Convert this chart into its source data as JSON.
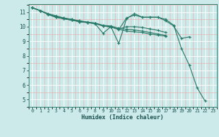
{
  "xlabel": "Humidex (Indice chaleur)",
  "bg_color": "#cceaea",
  "grid_major_color": "#ffffff",
  "grid_minor_color": "#e8b0b0",
  "line_color": "#2a7a6a",
  "series": [
    {
      "x": [
        0,
        1,
        2,
        3,
        4,
        5,
        6,
        7,
        8,
        9,
        10,
        11,
        12,
        13,
        14,
        15,
        16,
        17,
        18,
        19,
        20,
        21,
        22
      ],
      "y": [
        11.3,
        11.1,
        10.9,
        10.75,
        10.6,
        10.5,
        10.4,
        10.3,
        10.2,
        9.55,
        10.0,
        8.85,
        10.55,
        10.9,
        10.65,
        10.65,
        10.65,
        10.5,
        10.1,
        8.5,
        7.35,
        5.8,
        4.9
      ]
    },
    {
      "x": [
        0,
        1,
        2,
        3,
        4,
        5,
        6,
        7,
        8,
        9,
        10,
        11,
        12,
        13,
        14,
        15,
        16,
        17,
        18,
        19,
        20
      ],
      "y": [
        11.3,
        11.1,
        10.85,
        10.65,
        10.55,
        10.45,
        10.35,
        10.3,
        10.25,
        10.05,
        10.0,
        9.8,
        10.6,
        10.8,
        10.65,
        10.65,
        10.65,
        10.4,
        10.05,
        9.2,
        9.3
      ]
    },
    {
      "x": [
        0,
        1,
        2,
        3,
        4,
        5,
        6,
        7,
        8,
        9,
        10,
        11,
        12,
        13,
        14,
        15,
        16,
        17
      ],
      "y": [
        11.3,
        11.1,
        10.85,
        10.65,
        10.55,
        10.45,
        10.35,
        10.28,
        10.22,
        10.05,
        9.98,
        9.85,
        10.0,
        10.0,
        9.95,
        9.85,
        9.75,
        9.6
      ]
    },
    {
      "x": [
        0,
        1,
        2,
        3,
        4,
        5,
        6,
        7,
        8,
        9,
        10,
        11,
        12,
        13,
        14,
        15,
        16,
        17
      ],
      "y": [
        11.3,
        11.1,
        10.85,
        10.7,
        10.6,
        10.5,
        10.4,
        10.32,
        10.25,
        10.1,
        10.05,
        9.9,
        9.82,
        9.78,
        9.7,
        9.6,
        9.5,
        9.4
      ]
    },
    {
      "x": [
        0,
        1,
        2,
        3,
        4,
        5,
        6,
        7,
        8,
        9,
        10,
        11,
        12,
        13,
        14,
        15,
        16,
        17
      ],
      "y": [
        11.3,
        11.1,
        10.85,
        10.65,
        10.55,
        10.45,
        10.35,
        10.28,
        10.22,
        10.05,
        9.98,
        9.82,
        9.7,
        9.65,
        9.6,
        9.5,
        9.42,
        9.35
      ]
    }
  ],
  "xlim": [
    -0.5,
    23.5
  ],
  "ylim": [
    4.5,
    11.55
  ],
  "xticks": [
    0,
    1,
    2,
    3,
    4,
    5,
    6,
    7,
    8,
    9,
    10,
    11,
    12,
    13,
    14,
    15,
    16,
    17,
    18,
    19,
    20,
    21,
    22,
    23
  ],
  "yticks": [
    5,
    6,
    7,
    8,
    9,
    10,
    11
  ]
}
